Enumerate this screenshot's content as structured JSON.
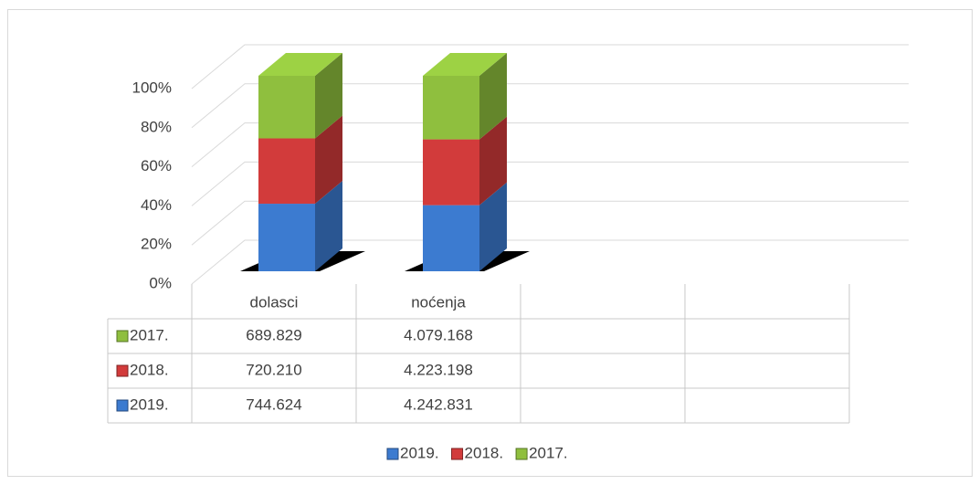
{
  "chart_data": {
    "type": "bar",
    "stacked": "percent",
    "three_d": true,
    "categories": [
      "dolasci",
      "noćenja",
      null,
      null
    ],
    "series": [
      {
        "name": "2019.",
        "color": "#3c7bd0",
        "values": [
          744624,
          4242831,
          null,
          null
        ],
        "value_labels": [
          "744.624",
          "4.242.831",
          null,
          null
        ]
      },
      {
        "name": "2018.",
        "color": "#d23b3b",
        "values": [
          720210,
          4223198,
          null,
          null
        ],
        "value_labels": [
          "720.210",
          "4.223.198",
          null,
          null
        ]
      },
      {
        "name": "2017.",
        "color": "#8fbf3e",
        "values": [
          689829,
          4079168,
          null,
          null
        ],
        "value_labels": [
          "689.829",
          "4.079.168",
          null,
          null
        ]
      }
    ],
    "ylim": [
      0,
      100
    ],
    "yticks": [
      {
        "value": 0,
        "label": "0%"
      },
      {
        "value": 20,
        "label": "20%"
      },
      {
        "value": 40,
        "label": "40%"
      },
      {
        "value": 60,
        "label": "60%"
      },
      {
        "value": 80,
        "label": "80%"
      },
      {
        "value": 100,
        "label": "100%"
      }
    ],
    "grid": true,
    "data_table": true,
    "legend": "bottom"
  }
}
